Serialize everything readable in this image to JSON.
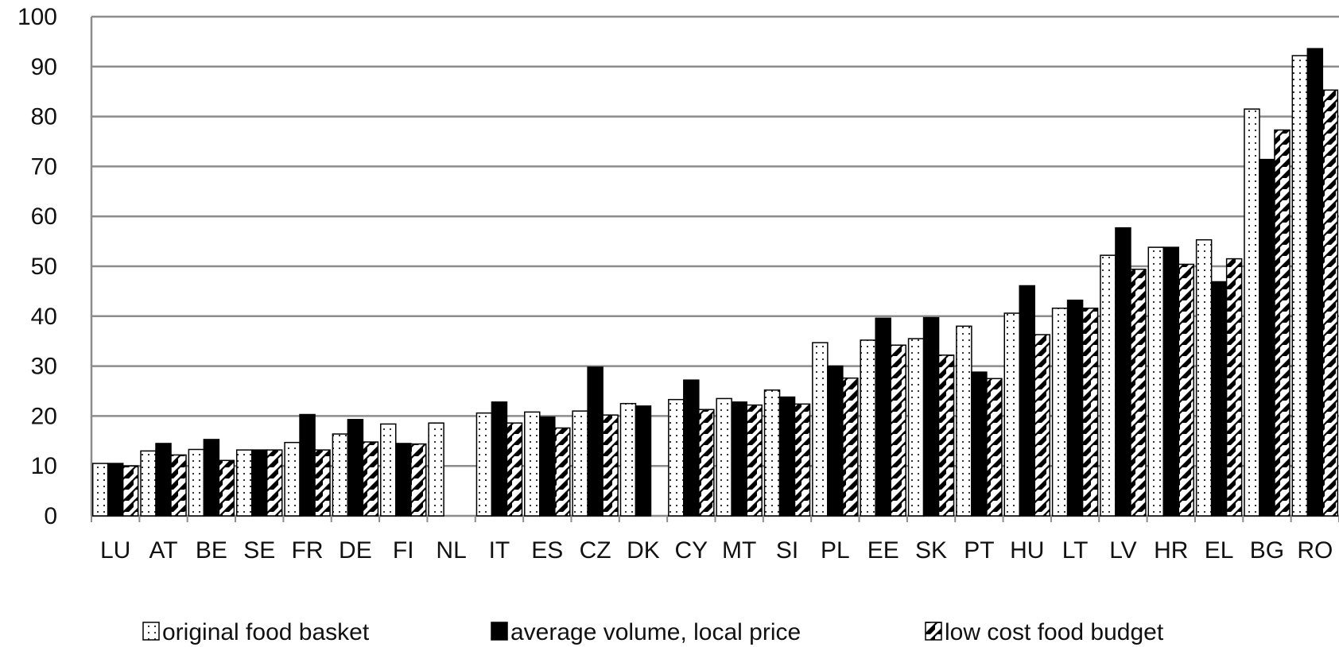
{
  "chart_data": {
    "type": "bar",
    "title": "",
    "xlabel": "",
    "ylabel": "",
    "ylim": [
      0,
      100
    ],
    "yticks": [
      0,
      10,
      20,
      30,
      40,
      50,
      60,
      70,
      80,
      90,
      100
    ],
    "grid": "horizontal",
    "legend_position": "bottom",
    "categories": [
      "LU",
      "AT",
      "BE",
      "SE",
      "FR",
      "DE",
      "FI",
      "NL",
      "IT",
      "ES",
      "CZ",
      "DK",
      "CY",
      "MT",
      "SI",
      "PL",
      "EE",
      "SK",
      "PT",
      "HU",
      "LT",
      "LV",
      "HR",
      "EL",
      "BG",
      "RO"
    ],
    "series": [
      {
        "name": "original food basket",
        "pattern": "dotted",
        "values": [
          10.5,
          13,
          13.3,
          13.2,
          14.7,
          16.4,
          18.4,
          18.6,
          20.6,
          20.8,
          21,
          22.5,
          23.3,
          23.5,
          25.2,
          34.7,
          35.2,
          35.5,
          38,
          40.6,
          41.6,
          52.2,
          53.8,
          55.3,
          81.5,
          92.2
        ]
      },
      {
        "name": "average volume, local price",
        "pattern": "solid",
        "values": [
          10.5,
          14.5,
          15.3,
          13.2,
          20.3,
          19.3,
          14.5,
          null,
          22.8,
          19.8,
          29.8,
          22,
          27.2,
          22.8,
          23.8,
          30,
          39.6,
          39.7,
          28.8,
          46.1,
          43.2,
          57.7,
          53.8,
          46.9,
          71.4,
          93.6
        ]
      },
      {
        "name": "low cost food budget",
        "pattern": "hatched",
        "values": [
          10,
          12.2,
          11.1,
          13.2,
          13.2,
          14.8,
          14.4,
          null,
          18.6,
          17.6,
          20.2,
          null,
          21.3,
          22.2,
          22.4,
          27.6,
          34.2,
          32.2,
          27.5,
          36.3,
          41.6,
          49.4,
          50.4,
          51.5,
          77.3,
          85.3
        ]
      }
    ]
  }
}
